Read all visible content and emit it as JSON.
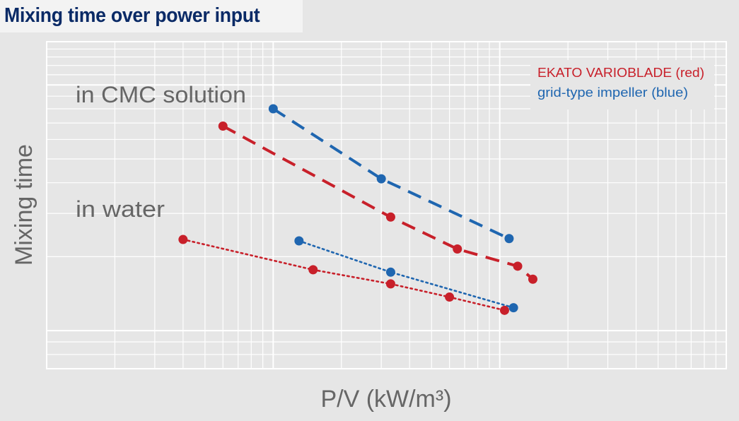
{
  "chart_data": {
    "type": "scatter",
    "title": "Mixing time over power input",
    "xlabel": "P/V (kW/m³)",
    "ylabel": "Mixing time",
    "xscale": "log",
    "yscale": "log",
    "grid": true,
    "axis_tick_labels": "none",
    "legend_position": "top-right",
    "legend": [
      {
        "label": "EKATO VARIOBLADE (red)",
        "color": "#c8202a"
      },
      {
        "label": "grid-type impeller (blue)",
        "color": "#1f66b0"
      }
    ],
    "annotations": [
      {
        "text": "in CMC solution"
      },
      {
        "text": "in water"
      }
    ],
    "series": [
      {
        "name": "EKATO VARIOBLADE (red)",
        "condition": "in CMC solution",
        "color": "#c8202a",
        "line_style": "dashed",
        "x": [
          0.06,
          0.33,
          0.65,
          1.2,
          1.4
        ],
        "y": [
          68,
          29,
          21.5,
          18.3,
          16.2
        ]
      },
      {
        "name": "grid-type impeller (blue)",
        "condition": "in CMC solution",
        "color": "#1f66b0",
        "line_style": "dashed",
        "x": [
          0.1,
          0.3,
          1.1
        ],
        "y": [
          80,
          41.5,
          23.7
        ]
      },
      {
        "name": "EKATO VARIOBLADE (red)",
        "condition": "in water",
        "color": "#c8202a",
        "line_style": "dotted",
        "x": [
          0.04,
          0.15,
          0.33,
          0.6,
          1.05
        ],
        "y": [
          23.5,
          17.7,
          15.5,
          13.7,
          12.1
        ]
      },
      {
        "name": "grid-type impeller (blue)",
        "condition": "in water",
        "color": "#1f66b0",
        "line_style": "dotted",
        "x": [
          0.13,
          0.33,
          1.15
        ],
        "y": [
          23.2,
          17.3,
          12.4
        ]
      }
    ]
  }
}
